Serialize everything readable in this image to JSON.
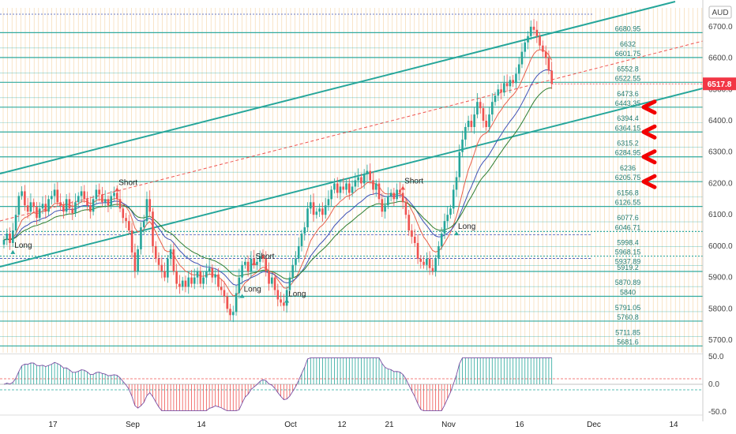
{
  "currency": "AUD",
  "last_price": "6517.8",
  "colors": {
    "level_line": "#26a69a",
    "trend_line": "#26a69a",
    "up_candle": "#26a69a",
    "down_candle": "#ef5350",
    "last_price": "#f23645",
    "arrow": "#f20000",
    "ema_fast": "#e8604c",
    "ema_mid": "#3f51b5",
    "ema_slow": "#2e7d32",
    "osc_pos": "#26a69a",
    "osc_neg": "#ef5350"
  },
  "chart_data": {
    "type": "candlestick",
    "price_axis": {
      "ylim": [
        5660,
        6760
      ],
      "ticks": [
        5700,
        5800,
        5900,
        6000,
        6100,
        6200,
        6300,
        6400,
        6500,
        6600,
        6700
      ]
    },
    "x_ticks": [
      "17",
      "Sep",
      "14",
      "Oct",
      "12",
      "21",
      "Nov",
      "16",
      "Dec",
      "14"
    ],
    "levels": [
      "6680.95",
      "6632",
      "6601.75",
      "6552.8",
      "6522.55",
      "6473.6",
      "6443.35",
      "6394.4",
      "6364.15",
      "6315.2",
      "6284.95",
      "6236",
      "6205.75",
      "6156.8",
      "6126.55",
      "6077.6",
      "6046.71",
      "5998.4",
      "5968.15",
      "5937.89",
      "5919.2",
      "5870.89",
      "5840",
      "5791.05",
      "5760.8",
      "5711.85",
      "5681.6"
    ],
    "signals": [
      {
        "label": "Long",
        "bar": 3,
        "price": 5995
      },
      {
        "label": "Short",
        "bar": 38,
        "price": 6195
      },
      {
        "label": "Short",
        "bar": 84,
        "price": 5960
      },
      {
        "label": "Long",
        "bar": 80,
        "price": 5855
      },
      {
        "label": "Long",
        "bar": 95,
        "price": 5840
      },
      {
        "label": "Short",
        "bar": 134,
        "price": 6200
      },
      {
        "label": "Long",
        "bar": 152,
        "price": 6055
      }
    ],
    "osc_axis": {
      "ticks": [
        "50.0",
        "0.0",
        "-50.0"
      ],
      "ylim": [
        -50,
        50
      ]
    },
    "close": [
      6020,
      6040,
      6010,
      6050,
      6100,
      6160,
      6175,
      6130,
      6110,
      6140,
      6125,
      6090,
      6120,
      6135,
      6110,
      6150,
      6160,
      6180,
      6140,
      6130,
      6110,
      6150,
      6120,
      6105,
      6140,
      6160,
      6175,
      6150,
      6130,
      6110,
      6150,
      6180,
      6165,
      6140,
      6150,
      6130,
      6160,
      6170,
      6150,
      6120,
      6090,
      6080,
      6050,
      5980,
      5920,
      5990,
      6060,
      6080,
      6150,
      6110,
      6000,
      5960,
      5940,
      5920,
      5900,
      5960,
      5990,
      5920,
      5880,
      5870,
      5890,
      5870,
      5900,
      5880,
      5900,
      5920,
      5880,
      5900,
      5920,
      5930,
      5900,
      5910,
      5870,
      5860,
      5840,
      5800,
      5780,
      5790,
      5850,
      5900,
      5940,
      5950,
      5920,
      5960,
      5940,
      5950,
      5970,
      5960,
      5920,
      5880,
      5900,
      5860,
      5830,
      5820,
      5810,
      5860,
      5900,
      5940,
      5960,
      6000,
      6040,
      6060,
      6120,
      6140,
      6100,
      6110,
      6120,
      6100,
      6130,
      6150,
      6180,
      6200,
      6170,
      6190,
      6180,
      6200,
      6170,
      6190,
      6210,
      6220,
      6200,
      6230,
      6240,
      6210,
      6180,
      6200,
      6150,
      6110,
      6130,
      6160,
      6170,
      6150,
      6180,
      6170,
      6140,
      6100,
      6050,
      6030,
      6010,
      5960,
      5950,
      5940,
      5960,
      5930,
      5920,
      5960,
      6000,
      6040,
      6080,
      6100,
      6120,
      6180,
      6220,
      6300,
      6340,
      6380,
      6400,
      6380,
      6420,
      6460,
      6440,
      6400,
      6380,
      6420,
      6460,
      6480,
      6500,
      6490,
      6520,
      6510,
      6530,
      6520,
      6550,
      6580,
      6620,
      6650,
      6670,
      6700,
      6690,
      6670,
      6640,
      6620,
      6600,
      6560,
      6518
    ]
  }
}
